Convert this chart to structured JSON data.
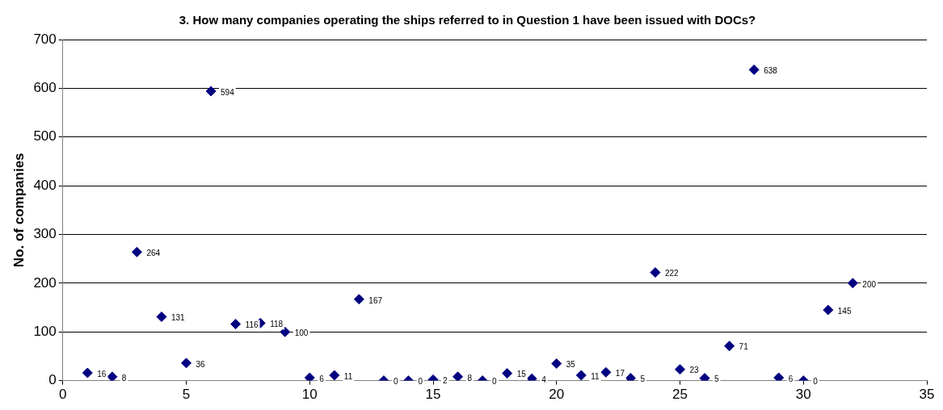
{
  "chart_data": {
    "type": "scatter",
    "title": "3. How many companies operating the ships referred to in Question 1 have been issued with DOCs?",
    "ylabel": "No. of companies",
    "x": [
      1,
      2,
      3,
      4,
      5,
      6,
      7,
      8,
      9,
      10,
      11,
      12,
      13,
      14,
      15,
      16,
      17,
      18,
      19,
      20,
      21,
      22,
      23,
      24,
      25,
      26,
      27,
      28,
      29,
      30,
      31,
      32
    ],
    "values": [
      16,
      8,
      264,
      131,
      36,
      594,
      116,
      118,
      100,
      6,
      11,
      167,
      0,
      0,
      2,
      8,
      0,
      15,
      4,
      35,
      11,
      17,
      5,
      222,
      23,
      5,
      71,
      638,
      6,
      0,
      145,
      200
    ],
    "color": "#000080",
    "marker": "diamond",
    "data_labels": true,
    "xlim": [
      0,
      35
    ],
    "xticks": [
      0,
      5,
      10,
      15,
      20,
      25,
      30,
      35
    ],
    "ylim": [
      0,
      700
    ],
    "yticks": [
      0,
      100,
      200,
      300,
      400,
      500,
      600,
      700
    ],
    "grid": "y",
    "legend": false
  }
}
